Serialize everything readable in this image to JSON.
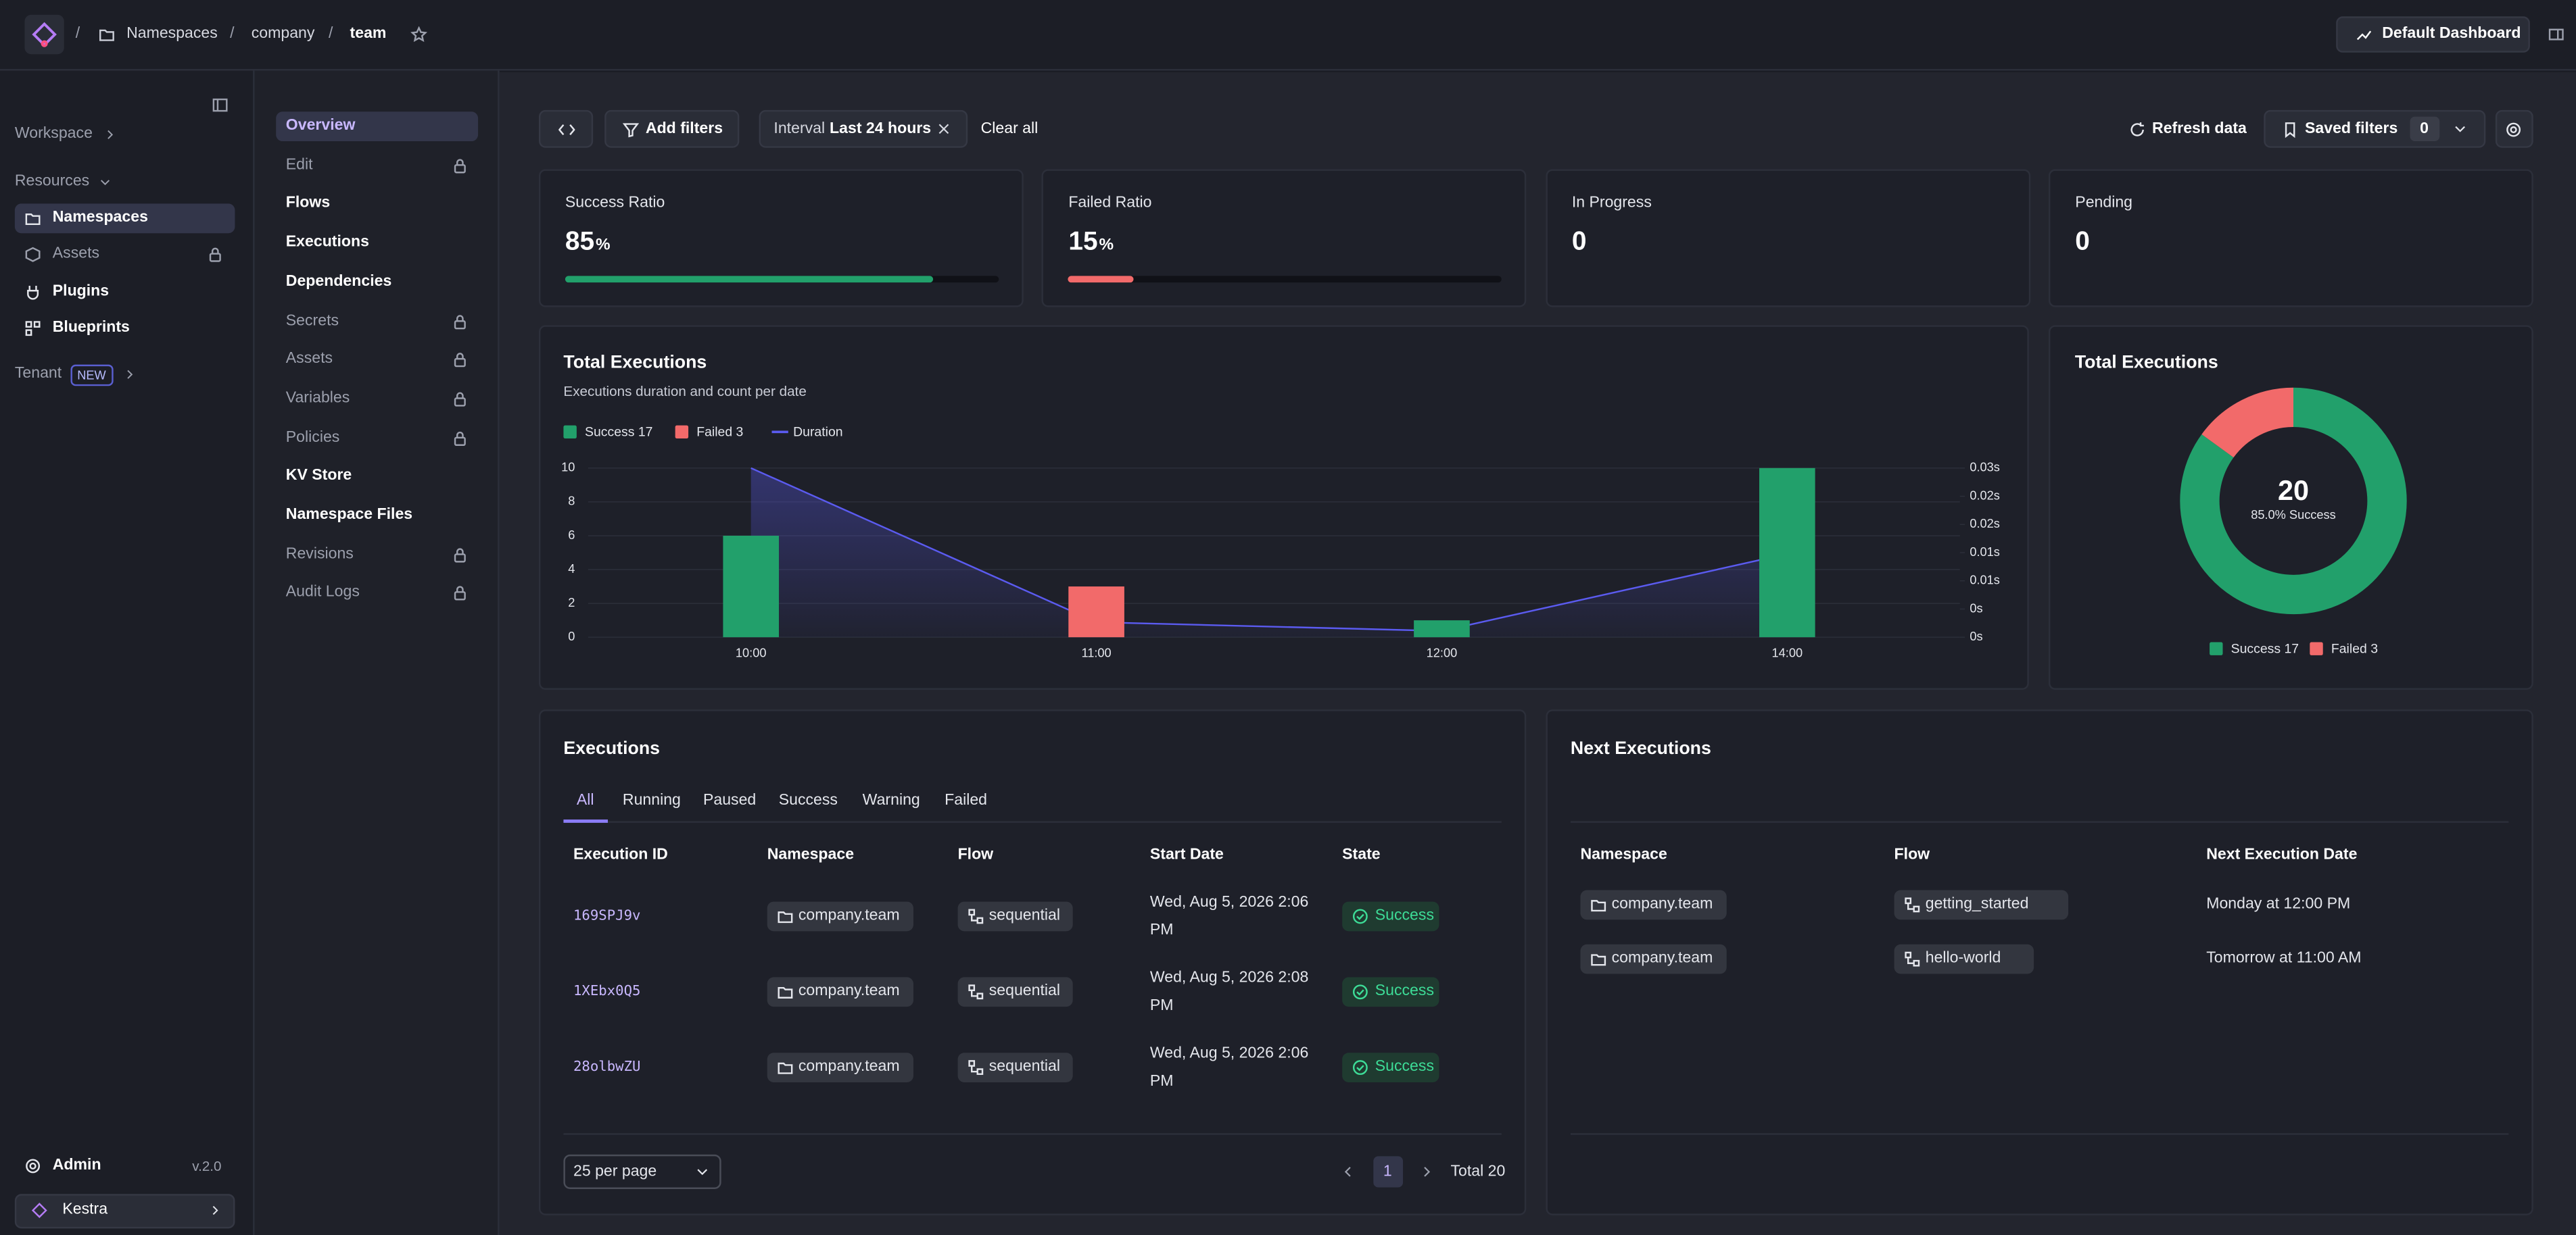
{
  "header": {
    "breadcrumbs": [
      "Namespaces",
      "company",
      "team"
    ],
    "dashboard_button": "Default Dashboard"
  },
  "sidebar": {
    "workspace": "Workspace",
    "resources": "Resources",
    "items": [
      "Namespaces",
      "Assets",
      "Plugins",
      "Blueprints"
    ],
    "tenant": "Tenant",
    "tenant_badge": "NEW",
    "admin": "Admin",
    "version": "v.2.0",
    "org": "Kestra"
  },
  "subnav": {
    "items": [
      {
        "label": "Overview",
        "locked": false
      },
      {
        "label": "Edit",
        "locked": true
      },
      {
        "label": "Flows",
        "locked": false
      },
      {
        "label": "Executions",
        "locked": false
      },
      {
        "label": "Dependencies",
        "locked": false
      },
      {
        "label": "Secrets",
        "locked": true
      },
      {
        "label": "Assets",
        "locked": true
      },
      {
        "label": "Variables",
        "locked": true
      },
      {
        "label": "Policies",
        "locked": true
      },
      {
        "label": "KV Store",
        "locked": false
      },
      {
        "label": "Namespace Files",
        "locked": false
      },
      {
        "label": "Revisions",
        "locked": true
      },
      {
        "label": "Audit Logs",
        "locked": true
      }
    ]
  },
  "toolbar": {
    "add_filters": "Add filters",
    "filter_key": "Interval",
    "filter_value": "Last 24 hours",
    "clear": "Clear all",
    "refresh": "Refresh data",
    "saved_filters": "Saved filters",
    "saved_count": 0
  },
  "stats": [
    {
      "label": "Success Ratio",
      "value": 85,
      "unit": "%",
      "color": "#22a06b"
    },
    {
      "label": "Failed Ratio",
      "value": 15,
      "unit": "%",
      "color": "#f26a6a"
    },
    {
      "label": "In Progress",
      "value": 0
    },
    {
      "label": "Pending",
      "value": 0
    }
  ],
  "chart_data": [
    {
      "type": "bar",
      "title": "Total Executions",
      "subtitle": "Executions duration and count per date",
      "categories": [
        "10:00",
        "11:00",
        "12:00",
        "14:00"
      ],
      "series": [
        {
          "name": "Success 17",
          "color": "#22a06b",
          "values": [
            6,
            0,
            1,
            10
          ]
        },
        {
          "name": "Failed 3",
          "color": "#f26a6a",
          "values": [
            0,
            3,
            0,
            0
          ]
        },
        {
          "name": "Duration",
          "type": "line",
          "axis": "y2",
          "color": "#5b5bf0",
          "values": [
            0.027,
            0.0024,
            0.001,
            0.0133
          ]
        }
      ],
      "ylim": [
        0,
        10
      ],
      "yticks": [
        0,
        2,
        4,
        6,
        8,
        10
      ],
      "y2lim": [
        0,
        0.027
      ],
      "y2ticks": [
        {
          "value": 0,
          "label": "0s"
        },
        {
          "value": 0.0045,
          "label": "0s"
        },
        {
          "value": 0.009,
          "label": "0.01s"
        },
        {
          "value": 0.0135,
          "label": "0.01s"
        },
        {
          "value": 0.018,
          "label": "0.02s"
        },
        {
          "value": 0.0225,
          "label": "0.02s"
        },
        {
          "value": 0.027,
          "label": "0.03s"
        }
      ],
      "grid": true,
      "stacked": true,
      "legend": "top-left"
    },
    {
      "type": "pie",
      "donut": true,
      "title": "Total Executions",
      "center_value": 20,
      "center_label": "85.0% Success",
      "categories": [
        "Success 17",
        "Failed 3"
      ],
      "values": [
        17,
        3
      ],
      "colors": [
        "#22a06b",
        "#f26a6a"
      ],
      "legend": "bottom"
    }
  ],
  "executions": {
    "title": "Executions",
    "tabs": [
      "All",
      "Running",
      "Paused",
      "Success",
      "Warning",
      "Failed"
    ],
    "columns": [
      "Execution ID",
      "Namespace",
      "Flow",
      "Start Date",
      "State"
    ],
    "rows": [
      [
        "169SPJ9v",
        "company.team",
        "sequential",
        "Wed, Aug 5, 2026 2:06 PM",
        "Success"
      ],
      [
        "1XEbx0Q5",
        "company.team",
        "sequential",
        "Wed, Aug 5, 2026 2:08 PM",
        "Success"
      ],
      [
        "28olbwZU",
        "company.team",
        "sequential",
        "Wed, Aug 5, 2026 2:06 PM",
        "Success"
      ]
    ],
    "per_page": "25 per page",
    "page": 1,
    "total": "Total 20"
  },
  "next_executions": {
    "title": "Next Executions",
    "columns": [
      "Namespace",
      "Flow",
      "Next Execution Date"
    ],
    "rows": [
      [
        "company.team",
        "getting_started",
        "Monday at 12:00 PM"
      ],
      [
        "company.team",
        "hello-world",
        "Tomorrow at 11:00 AM"
      ]
    ]
  }
}
